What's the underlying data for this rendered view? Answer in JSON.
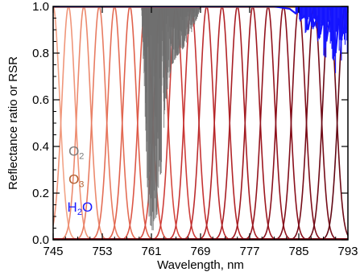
{
  "chart_data": {
    "type": "line",
    "title": "",
    "xlabel": "Wavelength, nm",
    "ylabel": "Reflectance ratio or RSR",
    "xlim": [
      745,
      793
    ],
    "ylim": [
      0.0,
      1.0
    ],
    "x_ticks": [
      "745",
      "753",
      "761",
      "769",
      "777",
      "785",
      "793"
    ],
    "y_ticks": [
      "0.0",
      "0.2",
      "0.4",
      "0.6",
      "0.8",
      "1.0"
    ],
    "grid": false,
    "annotations": [
      {
        "text": "O",
        "sub": "2",
        "color": "#7a7a7a",
        "x": 747.5,
        "y": 0.36
      },
      {
        "text": "O",
        "sub": "3",
        "color": "#b25e2e",
        "x": 747.5,
        "y": 0.24
      },
      {
        "text": "H",
        "sub": "2",
        "tail": "O",
        "color": "#1a1aff",
        "x": 747.3,
        "y": 0.12
      }
    ],
    "rsr_bands": {
      "centers": [
        745,
        747.5,
        750,
        752.5,
        755,
        757.5,
        760,
        762.5,
        765,
        767.5,
        770,
        772.5,
        775,
        777.5,
        780,
        782.5,
        785,
        787.5,
        790,
        792.5
      ],
      "fwhm_nm": 2.5,
      "colors": [
        "#f2a488",
        "#f0967a",
        "#ec8a6e",
        "#e87c62",
        "#e46e56",
        "#e0624c",
        "#dc5646",
        "#d64a40",
        "#ce3e3a",
        "#c63434",
        "#bc2c2e",
        "#b22428",
        "#a81e24",
        "#9e1820",
        "#94141e",
        "#8a101c",
        "#800e1a",
        "#760c18",
        "#6c0a16",
        "#620814"
      ]
    },
    "series": [
      {
        "label": "O2",
        "color": "#6e6e6e",
        "x": [
          759.4,
          759.9,
          760.3,
          760.6,
          761.0,
          761.5,
          762.0,
          762.6,
          763.2,
          763.8,
          764.4,
          765.0,
          765.6,
          766.2,
          766.8,
          767.4,
          768.0,
          768.6,
          769.0
        ],
        "y_min": [
          0.98,
          0.6,
          0.25,
          0.08,
          0.02,
          0.05,
          0.12,
          0.28,
          0.55,
          0.68,
          0.75,
          0.78,
          0.8,
          0.82,
          0.85,
          0.88,
          0.92,
          0.96,
          1.0
        ]
      },
      {
        "label": "O3",
        "color": "#b25e2e",
        "y_const": 1.0
      },
      {
        "label": "H2O",
        "color": "#1414ff",
        "x": [
          745,
          755,
          765,
          775,
          781,
          783.5,
          784.5,
          785,
          785.5,
          786,
          786.5,
          787,
          787.5,
          788,
          788.5,
          789,
          789.5,
          790,
          790.5,
          791,
          791.5,
          792,
          792.5,
          793
        ],
        "y": [
          1.0,
          1.0,
          1.0,
          1.0,
          1.0,
          0.99,
          0.97,
          0.98,
          0.95,
          0.96,
          0.9,
          0.97,
          0.92,
          0.95,
          0.88,
          0.96,
          0.85,
          0.94,
          0.9,
          0.8,
          0.95,
          0.87,
          0.92,
          0.9
        ]
      }
    ]
  }
}
